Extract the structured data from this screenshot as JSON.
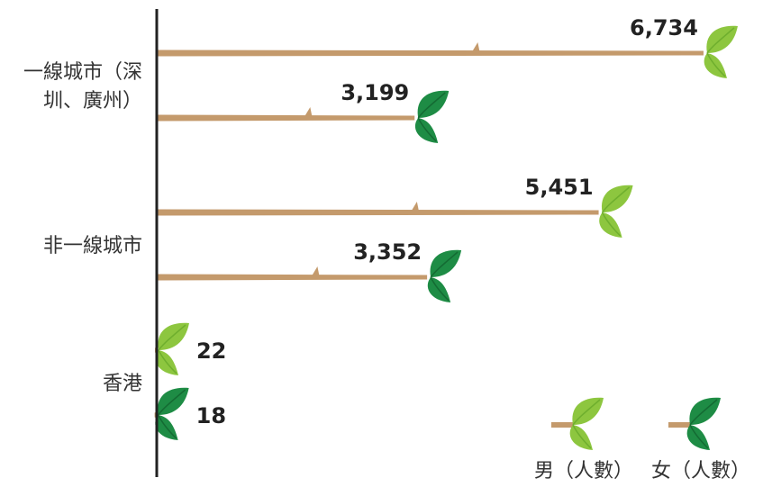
{
  "chart_data": {
    "type": "bar",
    "orientation": "horizontal",
    "categories": [
      "一線城市（深圳、廣州）",
      "非一線城市",
      "香港"
    ],
    "category_lines": [
      [
        "一線城市（深",
        "圳、廣州）"
      ],
      [
        "非一線城市"
      ],
      [
        "香港"
      ]
    ],
    "series": [
      {
        "name": "男（人數）",
        "values": [
          6734,
          5451,
          22
        ],
        "value_labels": [
          "6,734",
          "5,451",
          "22"
        ]
      },
      {
        "name": "女（人數）",
        "values": [
          3199,
          3352,
          18
        ],
        "value_labels": [
          "3,199",
          "3,352",
          "18"
        ]
      }
    ],
    "xlim": [
      0,
      7000
    ],
    "grid": false,
    "legend_position": "bottom-right",
    "colors": {
      "branch": "#C49A6C",
      "leaf_male": "#8DC63F",
      "leaf_male_dark": "#6FAF2E",
      "leaf_female": "#1E8C45",
      "leaf_female_dark": "#146B33",
      "axis": "#222222"
    }
  }
}
